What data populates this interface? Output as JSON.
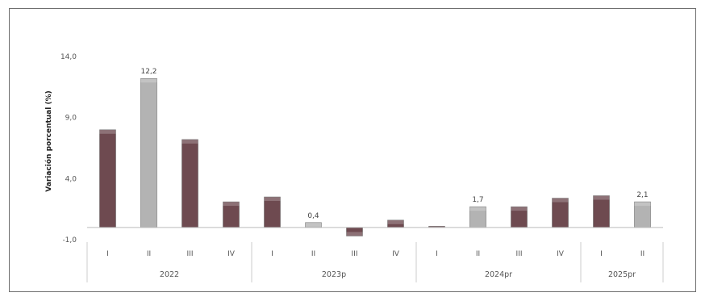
{
  "chart_data": {
    "type": "bar",
    "ylabel": "Variación porcentual (%)",
    "ylim": [
      -1.0,
      14.0
    ],
    "yticks": [
      "14,0",
      "9,0",
      "4,0",
      "-1,0"
    ],
    "ytick_values": [
      14.0,
      9.0,
      4.0,
      -1.0
    ],
    "categories": [
      "I",
      "II",
      "III",
      "IV",
      "I",
      "II",
      "III",
      "IV",
      "I",
      "II",
      "III",
      "IV",
      "I",
      "II"
    ],
    "groups": [
      {
        "label": "2022",
        "count": 4
      },
      {
        "label": "2023p",
        "count": 4
      },
      {
        "label": "2024pr",
        "count": 4
      },
      {
        "label": "2025pr",
        "count": 2
      }
    ],
    "values": [
      8.0,
      12.2,
      7.2,
      2.1,
      2.5,
      0.4,
      -0.7,
      0.6,
      0.1,
      1.7,
      1.7,
      2.4,
      2.6,
      2.1
    ],
    "data_labels": [
      "",
      "12,2",
      "",
      "",
      "",
      "0,4",
      "",
      "",
      "",
      "1,7",
      "",
      "",
      "",
      "2,1"
    ],
    "colors": [
      "#6e4a50",
      "#b3b3b3",
      "#6e4a50",
      "#6e4a50",
      "#6e4a50",
      "#b3b3b3",
      "#6e4a50",
      "#6e4a50",
      "#6e4a50",
      "#b3b3b3",
      "#6e4a50",
      "#6e4a50",
      "#6e4a50",
      "#b3b3b3"
    ],
    "grid": false,
    "legend": "none"
  }
}
